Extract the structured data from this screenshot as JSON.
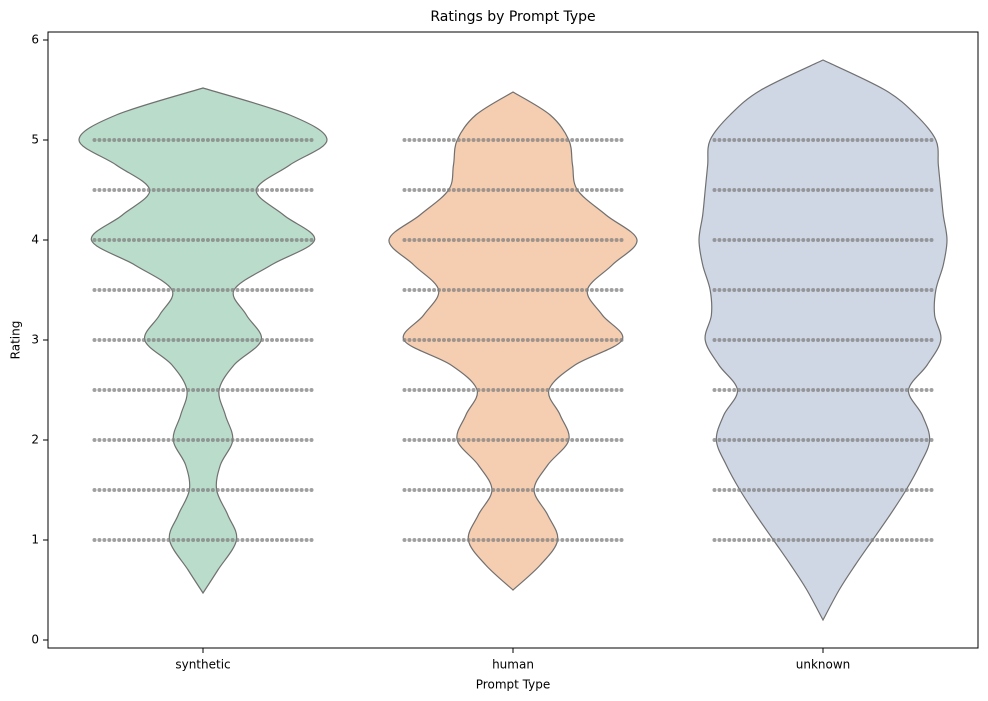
{
  "chart_data": {
    "type": "violin",
    "title": "Ratings by Prompt Type",
    "xlabel": "Prompt Type",
    "ylabel": "Rating",
    "categories": [
      "synthetic",
      "human",
      "unknown"
    ],
    "ylim": [
      -0.08,
      6.08
    ],
    "yticks": [
      0,
      1,
      2,
      3,
      4,
      5,
      6
    ],
    "outline_color": "#707070",
    "point_color": "#808080",
    "series": [
      {
        "name": "synthetic",
        "color": "#badccb",
        "density_y": [
          0.47,
          0.7,
          1.0,
          1.25,
          1.5,
          1.75,
          2.0,
          2.25,
          2.5,
          2.75,
          3.0,
          3.25,
          3.5,
          3.75,
          4.0,
          4.25,
          4.5,
          4.75,
          5.0,
          5.25,
          5.52
        ],
        "density_width": [
          0,
          0.12,
          0.27,
          0.2,
          0.11,
          0.14,
          0.24,
          0.18,
          0.13,
          0.25,
          0.47,
          0.35,
          0.25,
          0.55,
          0.9,
          0.65,
          0.43,
          0.7,
          1.0,
          0.7,
          0
        ],
        "point_levels": [
          1,
          1.5,
          2,
          2.5,
          3,
          3.5,
          4,
          4.5,
          5
        ]
      },
      {
        "name": "human",
        "color": "#f5cdb1",
        "density_y": [
          0.5,
          0.75,
          1.0,
          1.25,
          1.5,
          1.75,
          2.0,
          2.25,
          2.5,
          2.75,
          3.0,
          3.25,
          3.5,
          3.75,
          4.0,
          4.25,
          4.5,
          4.75,
          5.0,
          5.25,
          5.48
        ],
        "density_width": [
          0,
          0.22,
          0.36,
          0.28,
          0.17,
          0.28,
          0.45,
          0.38,
          0.29,
          0.5,
          0.88,
          0.72,
          0.6,
          0.8,
          1.0,
          0.75,
          0.52,
          0.48,
          0.45,
          0.3,
          0
        ],
        "point_levels": [
          1,
          1.5,
          2,
          2.5,
          3,
          3.5,
          4,
          4.5,
          5
        ]
      },
      {
        "name": "unknown",
        "color": "#cfd7e5",
        "density_y": [
          0.2,
          0.5,
          0.75,
          1.0,
          1.25,
          1.5,
          1.75,
          2.0,
          2.25,
          2.5,
          2.75,
          3.0,
          3.25,
          3.5,
          3.75,
          4.0,
          4.25,
          4.5,
          4.75,
          5.0,
          5.25,
          5.5,
          5.8
        ],
        "density_width": [
          0,
          0.13,
          0.26,
          0.4,
          0.54,
          0.67,
          0.78,
          0.86,
          0.8,
          0.69,
          0.84,
          0.95,
          0.9,
          0.91,
          0.97,
          1.0,
          0.97,
          0.95,
          0.93,
          0.91,
          0.75,
          0.5,
          0
        ],
        "point_levels": [
          1,
          1.5,
          2,
          2.5,
          3,
          3.5,
          4,
          4.5,
          5
        ]
      }
    ]
  }
}
